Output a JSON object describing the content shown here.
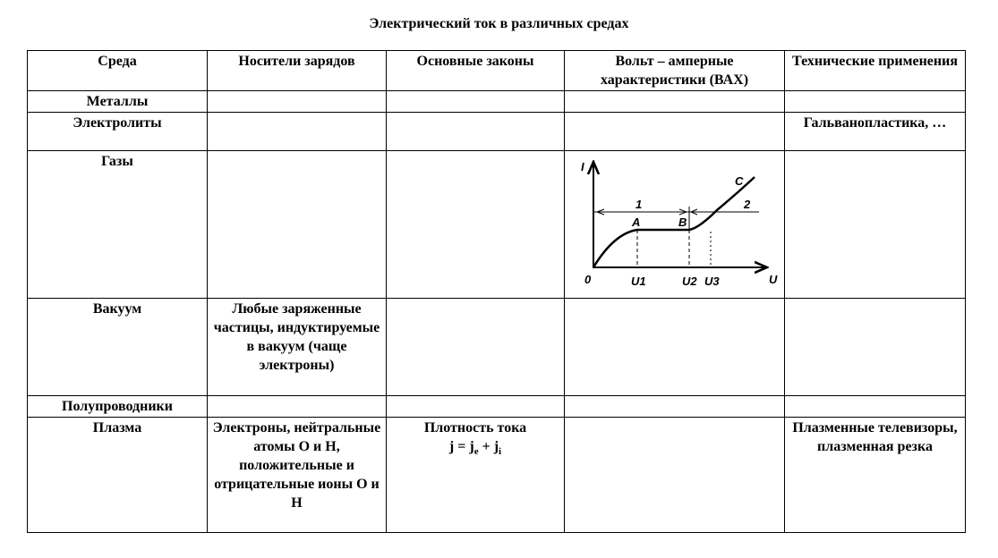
{
  "title": "Электрический ток в различных средах",
  "headers": [
    "Среда",
    "Носители зарядов",
    "Основные законы",
    "Вольт – амперные характеристики (ВАХ)",
    "Технические применения"
  ],
  "rows": [
    {
      "medium": "Металлы",
      "carriers": "",
      "laws": "",
      "vax": "",
      "applications": ""
    },
    {
      "medium": "Электролиты",
      "carriers": "",
      "laws": "",
      "vax": "",
      "applications": "Гальванопластика, …"
    },
    {
      "medium": "Газы",
      "carriers": "",
      "laws": "",
      "vax": "",
      "applications": ""
    },
    {
      "medium": "Вакуум",
      "carriers": "Любые заряженные частицы, индуктируемые в вакуум (чаще электроны)",
      "laws": "",
      "vax": "",
      "applications": ""
    },
    {
      "medium": "Полупроводники",
      "carriers": "",
      "laws": "",
      "vax": "",
      "applications": ""
    },
    {
      "medium": "Плазма",
      "carriers": "Электроны, нейтральные атомы О и Н, положительные и отрицательные ионы О и Н",
      "laws_title": "Плотность тока",
      "laws_formula": {
        "j": "j",
        "eq": " = ",
        "je": "j",
        "e": "e",
        "plus": " + ",
        "ji": "j",
        "i": "i"
      },
      "vax": "",
      "applications": "Плазменные телевизоры, плазменная резка"
    }
  ],
  "graph": {
    "y_axis": "I",
    "x_axis": "U",
    "origin": "0",
    "points": [
      "A",
      "B",
      "C"
    ],
    "regions": [
      "1",
      "2"
    ],
    "ticks": [
      "U1",
      "U2",
      "U3"
    ]
  }
}
